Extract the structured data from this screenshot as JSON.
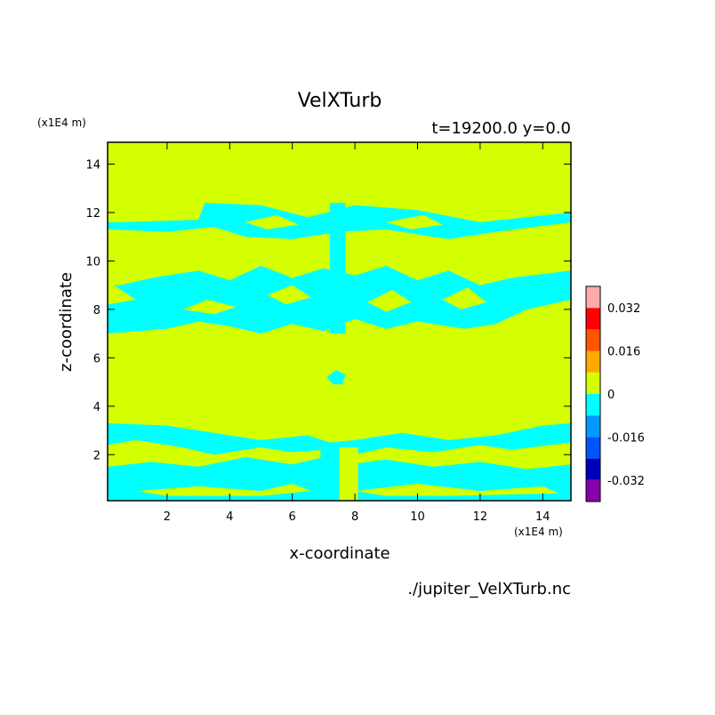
{
  "header": {
    "title": "VelXTurb",
    "subtitle": "t=19200.0 y=0.0",
    "y_units": "(x1E4 m)",
    "x_units": "(x1E4 m)",
    "source": "./jupiter_VelXTurb.nc"
  },
  "colors": {
    "background_level": "#d4ff00",
    "negative_level": "#00ffff",
    "frame": "#000000"
  },
  "chart_data": {
    "type": "heatmap",
    "title": "VelXTurb",
    "subtitle": "t=19200.0 y=0.0",
    "xlabel": "x-coordinate",
    "ylabel": "z-coordinate",
    "x_unit_label": "(x1E4 m)",
    "y_unit_label": "(x1E4 m)",
    "xlim": [
      0.1,
      14.9
    ],
    "ylim": [
      0.1,
      14.9
    ],
    "x_ticks": [
      2,
      4,
      6,
      8,
      10,
      12,
      14
    ],
    "y_ticks": [
      2,
      4,
      6,
      8,
      10,
      12,
      14
    ],
    "x_tick_labels": [
      "2",
      "4",
      "6",
      "8",
      "10",
      "12",
      "14"
    ],
    "y_tick_labels": [
      "2",
      "4",
      "6",
      "8",
      "10",
      "12",
      "14"
    ],
    "colorbar": {
      "levels": [
        {
          "low": -0.04,
          "high": -0.032,
          "color": "#8800aa"
        },
        {
          "low": -0.032,
          "high": -0.024,
          "color": "#0000bb"
        },
        {
          "low": -0.024,
          "high": -0.016,
          "color": "#0055ff"
        },
        {
          "low": -0.016,
          "high": -0.008,
          "color": "#0099ff"
        },
        {
          "low": -0.008,
          "high": 0.0,
          "color": "#00ffff"
        },
        {
          "low": 0.0,
          "high": 0.008,
          "color": "#d4ff00"
        },
        {
          "low": 0.008,
          "high": 0.016,
          "color": "#ffaa00"
        },
        {
          "low": 0.016,
          "high": 0.024,
          "color": "#ff5500"
        },
        {
          "low": 0.024,
          "high": 0.032,
          "color": "#ff0000"
        },
        {
          "low": 0.032,
          "high": 0.04,
          "color": "#ffaaaa"
        }
      ],
      "tick_values": [
        0.032,
        0.016,
        0,
        -0.016,
        -0.032
      ],
      "tick_labels": [
        "0.032",
        "0.016",
        "0",
        "-0.016",
        "-0.032"
      ]
    },
    "negative_regions": [
      {
        "name": "band-z12",
        "polygon": [
          [
            0.5,
            11.6
          ],
          [
            3,
            11.7
          ],
          [
            3.2,
            12.4
          ],
          [
            5,
            12.3
          ],
          [
            6.5,
            11.8
          ],
          [
            8,
            12.3
          ],
          [
            10,
            12.1
          ],
          [
            12,
            11.6
          ],
          [
            14.9,
            12.0
          ],
          [
            14.9,
            11.6
          ],
          [
            12.5,
            11.2
          ],
          [
            11,
            10.9
          ],
          [
            9,
            11.3
          ],
          [
            7.5,
            11.2
          ],
          [
            6,
            10.9
          ],
          [
            4.5,
            11.0
          ],
          [
            3.5,
            11.4
          ],
          [
            2,
            11.2
          ],
          [
            0.1,
            11.3
          ],
          [
            0.1,
            11.6
          ]
        ]
      },
      {
        "name": "band-z9",
        "polygon": [
          [
            0.5,
            9.0
          ],
          [
            1.5,
            9.3
          ],
          [
            3,
            9.6
          ],
          [
            4,
            9.2
          ],
          [
            5,
            9.8
          ],
          [
            6,
            9.3
          ],
          [
            7,
            9.7
          ],
          [
            8,
            9.4
          ],
          [
            9,
            9.8
          ],
          [
            10,
            9.2
          ],
          [
            11,
            9.6
          ],
          [
            12,
            9.0
          ],
          [
            13,
            9.3
          ],
          [
            14.9,
            9.6
          ],
          [
            14.9,
            8.4
          ],
          [
            13.5,
            8.0
          ],
          [
            12.5,
            7.4
          ],
          [
            11.5,
            7.2
          ],
          [
            10,
            7.5
          ],
          [
            9,
            7.2
          ],
          [
            8,
            7.6
          ],
          [
            7,
            7.1
          ],
          [
            6,
            7.4
          ],
          [
            5,
            7.0
          ],
          [
            4,
            7.3
          ],
          [
            3,
            7.5
          ],
          [
            2,
            7.2
          ],
          [
            0.1,
            7.0
          ],
          [
            0.1,
            8.2
          ],
          [
            1,
            8.4
          ],
          [
            0.3,
            9.0
          ]
        ]
      },
      {
        "name": "blob-z5",
        "polygon": [
          [
            7.1,
            5.2
          ],
          [
            7.4,
            5.5
          ],
          [
            7.7,
            5.3
          ],
          [
            7.6,
            4.9
          ],
          [
            7.3,
            4.9
          ]
        ]
      },
      {
        "name": "band-z3",
        "polygon": [
          [
            0.1,
            3.3
          ],
          [
            2,
            3.2
          ],
          [
            3.5,
            2.9
          ],
          [
            5,
            2.6
          ],
          [
            6.5,
            2.8
          ],
          [
            7.2,
            2.5
          ],
          [
            8,
            2.6
          ],
          [
            9.5,
            2.9
          ],
          [
            11,
            2.6
          ],
          [
            12.5,
            2.8
          ],
          [
            14,
            3.2
          ],
          [
            14.9,
            3.3
          ],
          [
            14.9,
            2.5
          ],
          [
            13,
            2.2
          ],
          [
            12,
            2.4
          ],
          [
            10.5,
            2.1
          ],
          [
            9,
            2.3
          ],
          [
            8,
            2.0
          ],
          [
            7,
            2.2
          ],
          [
            6,
            2.1
          ],
          [
            5,
            2.3
          ],
          [
            3.5,
            2.0
          ],
          [
            2.5,
            2.3
          ],
          [
            1,
            2.6
          ],
          [
            0.1,
            2.4
          ]
        ]
      },
      {
        "name": "band-z1",
        "polygon": [
          [
            0.1,
            1.5
          ],
          [
            1.5,
            1.7
          ],
          [
            3,
            1.5
          ],
          [
            4.5,
            1.9
          ],
          [
            6,
            1.6
          ],
          [
            7,
            1.9
          ],
          [
            7.8,
            1.6
          ],
          [
            9,
            1.8
          ],
          [
            10.5,
            1.5
          ],
          [
            12,
            1.7
          ],
          [
            13.5,
            1.4
          ],
          [
            14.9,
            1.6
          ],
          [
            14.9,
            0.1
          ],
          [
            0.1,
            0.1
          ]
        ]
      },
      {
        "name": "column-x7.2",
        "polygon": [
          [
            6.9,
            0.1
          ],
          [
            6.9,
            2.5
          ],
          [
            7.5,
            2.5
          ],
          [
            7.5,
            0.1
          ]
        ]
      },
      {
        "name": "column-x7.5-upper",
        "polygon": [
          [
            7.2,
            7.0
          ],
          [
            7.2,
            12.4
          ],
          [
            7.7,
            12.4
          ],
          [
            7.7,
            7.0
          ]
        ]
      }
    ],
    "positive_regions": [
      {
        "name": "gap-z1-a",
        "polygon": [
          [
            1,
            0.5
          ],
          [
            3,
            0.7
          ],
          [
            5,
            0.5
          ],
          [
            6,
            0.8
          ],
          [
            6.6,
            0.5
          ],
          [
            5,
            0.3
          ],
          [
            2,
            0.3
          ]
        ]
      },
      {
        "name": "gap-z1-b",
        "polygon": [
          [
            8,
            0.5
          ],
          [
            10,
            0.8
          ],
          [
            12,
            0.5
          ],
          [
            14,
            0.7
          ],
          [
            14.5,
            0.4
          ],
          [
            11,
            0.3
          ],
          [
            9,
            0.3
          ]
        ]
      },
      {
        "name": "column-x8",
        "polygon": [
          [
            7.5,
            0.1
          ],
          [
            7.5,
            2.3
          ],
          [
            8.1,
            2.3
          ],
          [
            8.1,
            0.1
          ]
        ]
      },
      {
        "name": "holes-z9-a",
        "polygon": [
          [
            2.5,
            8.0
          ],
          [
            3.3,
            8.4
          ],
          [
            4.2,
            8.1
          ],
          [
            3.5,
            7.8
          ]
        ]
      },
      {
        "name": "holes-z9-b",
        "polygon": [
          [
            5.2,
            8.6
          ],
          [
            6.0,
            9.0
          ],
          [
            6.6,
            8.5
          ],
          [
            5.8,
            8.2
          ]
        ]
      },
      {
        "name": "holes-z9-c",
        "polygon": [
          [
            8.4,
            8.3
          ],
          [
            9.2,
            8.8
          ],
          [
            9.8,
            8.3
          ],
          [
            9.0,
            7.9
          ]
        ]
      },
      {
        "name": "holes-z9-d",
        "polygon": [
          [
            10.8,
            8.4
          ],
          [
            11.6,
            8.9
          ],
          [
            12.2,
            8.3
          ],
          [
            11.4,
            8.0
          ]
        ]
      },
      {
        "name": "holes-z12-a",
        "polygon": [
          [
            4.5,
            11.6
          ],
          [
            5.5,
            11.9
          ],
          [
            6.2,
            11.5
          ],
          [
            5.2,
            11.3
          ]
        ]
      },
      {
        "name": "holes-z12-b",
        "polygon": [
          [
            9.0,
            11.6
          ],
          [
            10.2,
            11.9
          ],
          [
            10.8,
            11.5
          ],
          [
            9.8,
            11.3
          ]
        ]
      }
    ]
  }
}
